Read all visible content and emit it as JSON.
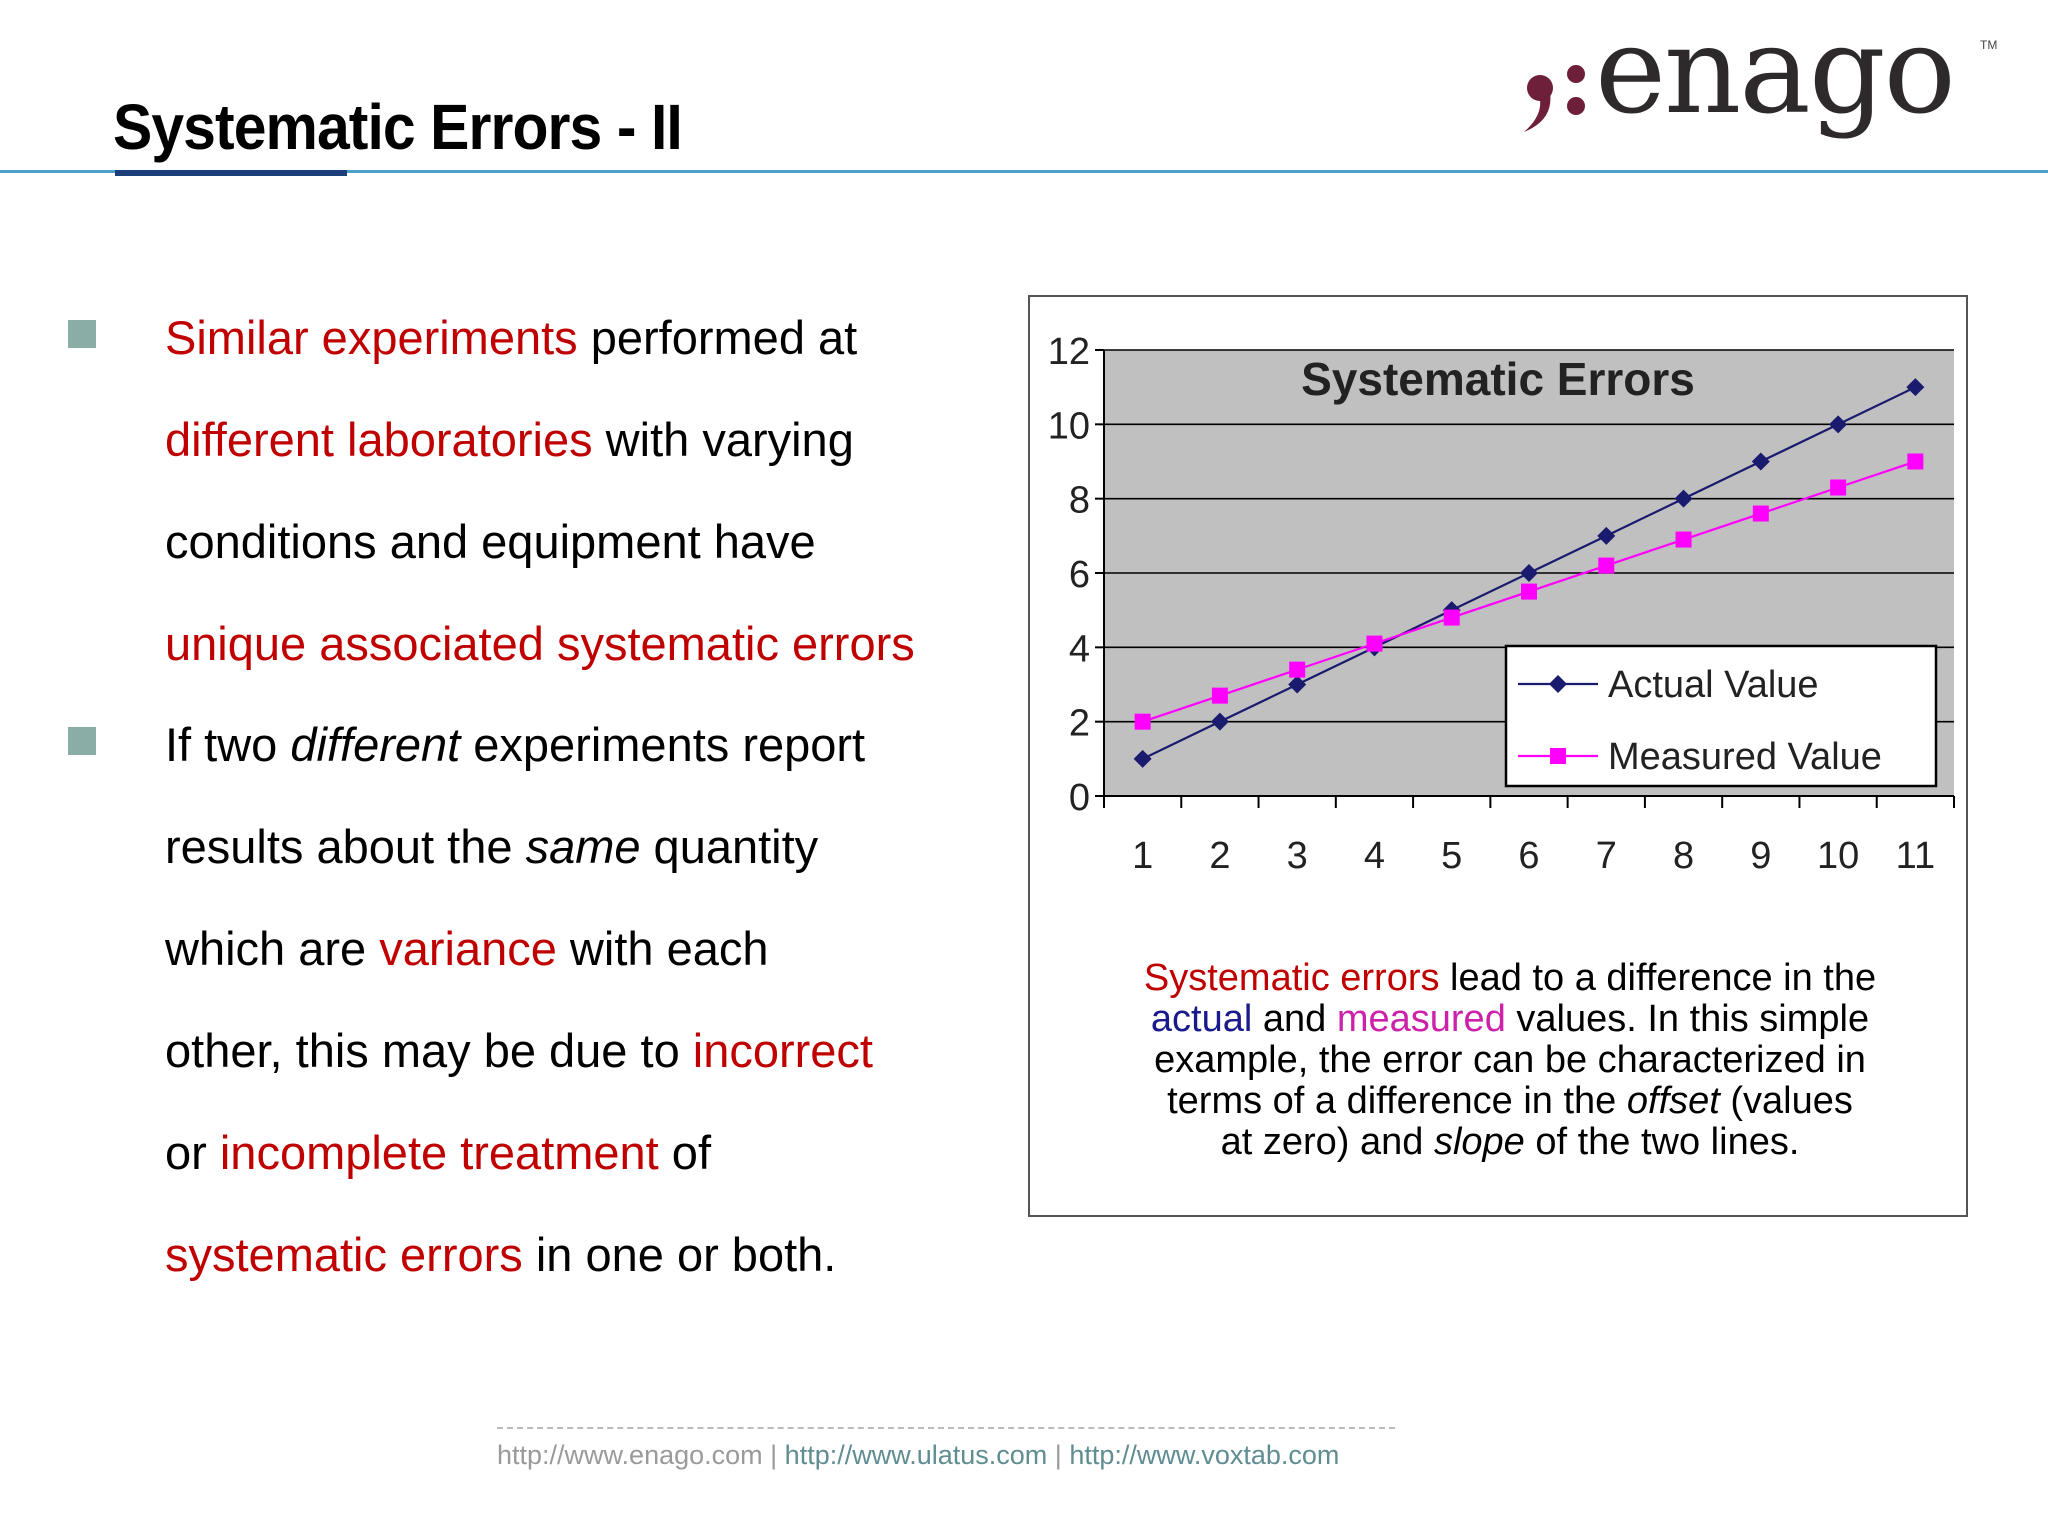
{
  "slide": {
    "title": "Systematic Errors - II"
  },
  "logo": {
    "text": "enago",
    "tm": "TM"
  },
  "bullets": {
    "b1_l1_a": "Similar experiments",
    "b1_l1_b": " performed at",
    "b1_l2_a": "different laboratories",
    "b1_l2_b": " with varying",
    "b1_l3": "conditions and equipment have",
    "b1_l4": "unique associated systematic errors",
    "b2_l1_a": "If two ",
    "b2_l1_b": "different",
    "b2_l1_c": " experiments report",
    "b2_l2_a": "results about the ",
    "b2_l2_b": "same",
    "b2_l2_c": " quantity",
    "b2_l3_a": "which are ",
    "b2_l3_b": "variance",
    "b2_l3_c": " with each",
    "b2_l4_a": "other, this may be due to ",
    "b2_l4_b": "incorrect",
    "b2_l5_a": "or ",
    "b2_l5_b": "incomplete treatment",
    "b2_l5_c": " of",
    "b2_l6_a": "systematic errors",
    "b2_l6_b": " in one or both."
  },
  "caption": {
    "l1_a": "Systematic errors",
    "l1_b": " lead to a difference in the",
    "l2_a": "actual",
    "l2_b": " and ",
    "l2_c": "measured",
    "l2_d": " values. In this simple",
    "l3": "example, the error can be characterized in",
    "l4_a": "terms of a difference in the ",
    "l4_b": "offset",
    "l4_c": " (values",
    "l5_a": "at zero) and ",
    "l5_b": "slope",
    "l5_c": " of the two lines."
  },
  "footer": {
    "link1": "http://www.enago.com",
    "sep1": " | ",
    "link2": "http://www.ulatus.com",
    "sep2": " | ",
    "link3": "http://www.voxtab.com"
  },
  "colors": {
    "highlight_red": "#c00000",
    "actual_series": "#1a1a6e",
    "measured_series": "#ff00ff",
    "plot_bg": "#c0c0c0",
    "bullet_marker": "#8aada6"
  },
  "chart_data": {
    "type": "line",
    "title": "Systematic Errors",
    "categories": [
      "1",
      "2",
      "3",
      "4",
      "5",
      "6",
      "7",
      "8",
      "9",
      "10",
      "11"
    ],
    "y_ticks": [
      "0",
      "2",
      "4",
      "6",
      "8",
      "10",
      "12"
    ],
    "ylim": [
      0,
      12
    ],
    "grid": true,
    "legend_position": "bottom-right",
    "series": [
      {
        "name": "Actual Value",
        "marker": "diamond",
        "color": "#1a1a6e",
        "values": [
          1,
          2,
          3,
          4,
          5,
          6,
          7,
          8,
          9,
          10,
          11
        ]
      },
      {
        "name": "Measured Value",
        "marker": "square",
        "color": "#ff00ff",
        "values": [
          2,
          2.7,
          3.4,
          4.1,
          4.8,
          5.5,
          6.2,
          6.9,
          7.6,
          8.3,
          9
        ]
      }
    ]
  }
}
